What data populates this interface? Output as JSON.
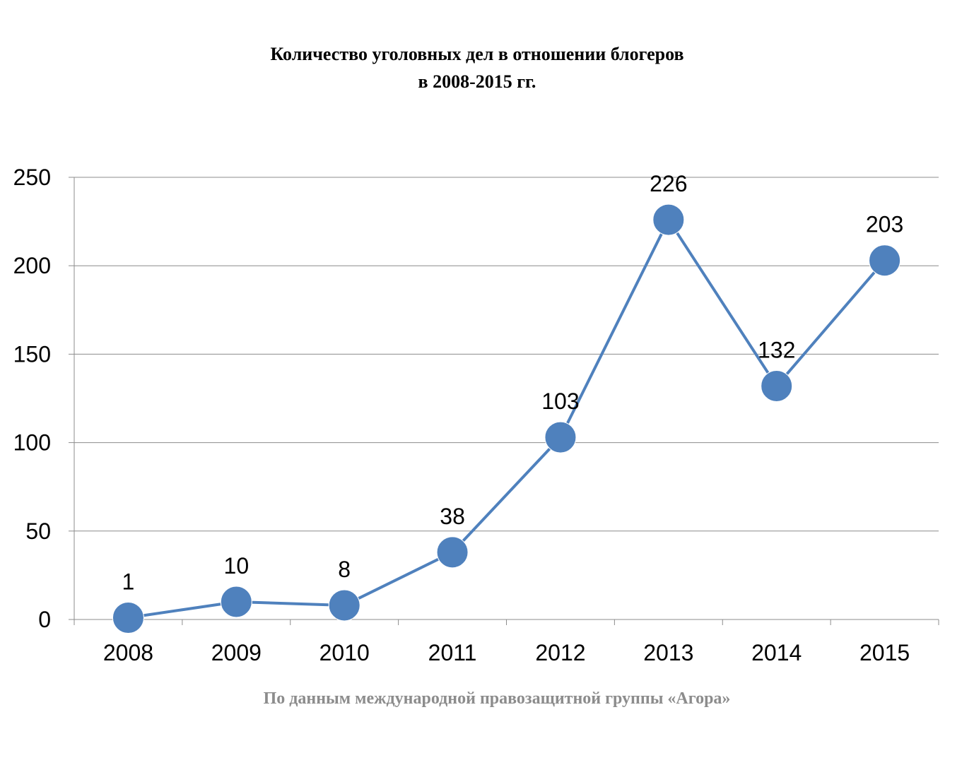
{
  "chart_data": {
    "type": "line",
    "title_line1": "Количество уголовных дел в отношении блогеров",
    "title_line2": "в 2008-2015 гг.",
    "categories": [
      "2008",
      "2009",
      "2010",
      "2011",
      "2012",
      "2013",
      "2014",
      "2015"
    ],
    "values": [
      1,
      10,
      8,
      38,
      103,
      226,
      132,
      203
    ],
    "data_labels": [
      "1",
      "10",
      "8",
      "38",
      "103",
      "226",
      "132",
      "203"
    ],
    "ylim": [
      0,
      250
    ],
    "y_ticks": [
      0,
      50,
      100,
      150,
      200,
      250
    ],
    "grid": true,
    "legend": "none",
    "series_color": "#4f81bd",
    "marker_color": "#4f81bd"
  },
  "source_note": "По данным международной правозащитной группы «Агора»"
}
